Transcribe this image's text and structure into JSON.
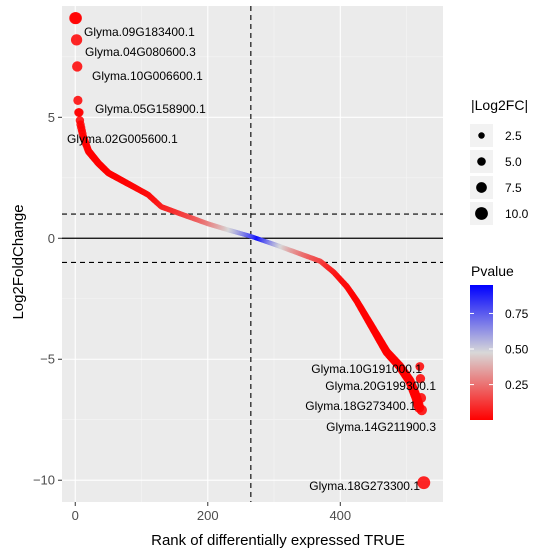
{
  "chart_data": {
    "type": "scatter",
    "xlabel": "Rank of differentially expressed TRUE",
    "ylabel": "Log2FoldChange",
    "xlim": [
      -20,
      555
    ],
    "ylim": [
      -10.9,
      9.6
    ],
    "x_ticks": [
      0,
      200,
      400
    ],
    "y_ticks": [
      -10,
      -5,
      0,
      5
    ],
    "grid": true,
    "n_points": 530,
    "reference_lines": {
      "horizontal_solid": 0,
      "horizontal_dashed": [
        1,
        -1
      ],
      "vertical_dashed": 265
    },
    "curve": [
      [
        0,
        9.1
      ],
      [
        1,
        8.3
      ],
      [
        2,
        7.1
      ],
      [
        3,
        5.7
      ],
      [
        5,
        5.2
      ],
      [
        8,
        4.7
      ],
      [
        12,
        4.2
      ],
      [
        20,
        3.6
      ],
      [
        35,
        3.1
      ],
      [
        50,
        2.7
      ],
      [
        70,
        2.4
      ],
      [
        90,
        2.1
      ],
      [
        110,
        1.8
      ],
      [
        130,
        1.3
      ],
      [
        150,
        1.1
      ],
      [
        170,
        0.9
      ],
      [
        200,
        0.6
      ],
      [
        230,
        0.35
      ],
      [
        265,
        0.08
      ],
      [
        300,
        -0.25
      ],
      [
        340,
        -0.65
      ],
      [
        370,
        -0.95
      ],
      [
        390,
        -1.4
      ],
      [
        410,
        -2.0
      ],
      [
        425,
        -2.6
      ],
      [
        440,
        -3.3
      ],
      [
        455,
        -4.0
      ],
      [
        470,
        -4.7
      ],
      [
        490,
        -5.3
      ],
      [
        505,
        -5.9
      ],
      [
        515,
        -6.6
      ],
      [
        520,
        -7.1
      ],
      [
        526,
        -10.1
      ]
    ],
    "labeled_points": [
      {
        "label": "Glyma.09G183400.1",
        "x": 1,
        "y": 9.1
      },
      {
        "label": "Glyma.04G080600.3",
        "x": 2,
        "y": 8.2
      },
      {
        "label": "Glyma.10G006600.1",
        "x": 3,
        "y": 7.1
      },
      {
        "label": "Glyma.05G158900.1",
        "x": 4,
        "y": 5.7
      },
      {
        "label": "Glyma.02G005600.1",
        "x": 6,
        "y": 5.2
      },
      {
        "label": "Glyma.10G191000.1",
        "x": 520,
        "y": -5.3
      },
      {
        "label": "Glyma.20G199300.1",
        "x": 521,
        "y": -5.8
      },
      {
        "label": "Glyma.18G273400.1",
        "x": 522,
        "y": -6.6
      },
      {
        "label": "Glyma.14G211900.3",
        "x": 523,
        "y": -7.1
      },
      {
        "label": "Glyma.18G273300.1",
        "x": 526,
        "y": -10.1
      }
    ],
    "legend_size": {
      "title": "|Log2FC|",
      "entries": [
        "2.5",
        "5.0",
        "7.5",
        "10.0"
      ],
      "values": [
        2.5,
        5.0,
        7.5,
        10.0
      ]
    },
    "legend_color": {
      "title": "Pvalue",
      "ticks": [
        "0.75",
        "0.50",
        "0.25"
      ],
      "tick_values": [
        0.75,
        0.5,
        0.25
      ],
      "range": [
        0.001,
        0.95
      ],
      "low_color": "#ff0000",
      "mid_color": "#d8d8d8",
      "high_color": "#0000ff"
    }
  },
  "colors": {
    "panel_background": "#ebebeb",
    "grid_major": "#ffffff",
    "grid_minor": "#f5f5f5"
  }
}
